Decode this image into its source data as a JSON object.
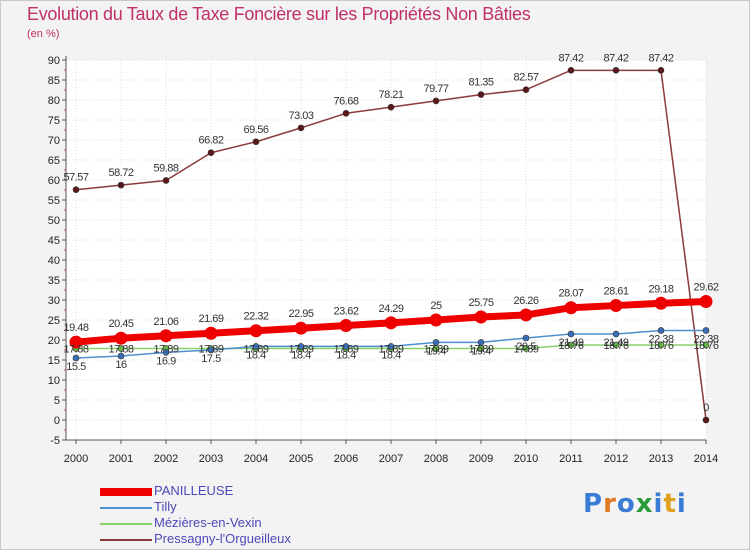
{
  "title": "Evolution du Taux de Taxe Foncière sur les Propriétés Non Bâties",
  "unit": "(en %)",
  "logo": {
    "text": "Proxiti"
  },
  "colors": {
    "background": "#f3f3f3",
    "title": "#c0306a",
    "axis": "#555555",
    "grid": "#dddddd",
    "legend_text": "#4a4ab8"
  },
  "chart_data": {
    "type": "line",
    "title": "Evolution du Taux de Taxe Foncière sur les Propriétés Non Bâties",
    "ylabel": "(en %)",
    "xlabel": "",
    "ylim": [
      -5,
      90
    ],
    "ytick_step": 5,
    "x": [
      "2000",
      "2001",
      "2002",
      "2003",
      "2004",
      "2005",
      "2006",
      "2007",
      "2008",
      "2009",
      "2010",
      "2011",
      "2012",
      "2013",
      "2014"
    ],
    "series": [
      {
        "name": "PANILLEUSE",
        "color": "#ee0000",
        "marker": "#ee0000",
        "labeled": true,
        "values": [
          19.48,
          20.45,
          21.06,
          21.69,
          22.32,
          22.95,
          23.62,
          24.29,
          25,
          25.75,
          26.26,
          28.07,
          28.61,
          29.18,
          29.62
        ],
        "labels": [
          "19.48",
          "20.45",
          "21.06",
          "21.69",
          "22.32",
          "22.95",
          "23.62",
          "24.29",
          "25",
          "25.75",
          "26.26",
          "28.07",
          "28.61",
          "29.18",
          "29.62"
        ]
      },
      {
        "name": "Tilly",
        "color": "#4d8fd0",
        "marker": "#3a6fb8",
        "labeled": true,
        "values": [
          15.5,
          16,
          16.9,
          17.5,
          18.4,
          18.4,
          18.4,
          18.4,
          19.4,
          19.4,
          20.5,
          21.49,
          21.49,
          22.38,
          22.38
        ],
        "labels": [
          "15.5",
          "16",
          "16.9",
          "17.5",
          "18.4",
          "18.4",
          "18.4",
          "18.4",
          "19.4",
          "19.4",
          "20.5",
          "21.49",
          "21.49",
          "22.38",
          "22.38"
        ]
      },
      {
        "name": "Mézières-en-Vexin",
        "color": "#88d06a",
        "marker": "#66b846",
        "labeled": true,
        "values": [
          17.88,
          17.88,
          17.89,
          17.89,
          17.89,
          17.89,
          17.89,
          17.89,
          17.89,
          17.89,
          17.89,
          18.76,
          18.76,
          18.76,
          18.76
        ],
        "labels": [
          "17.88",
          "17.88",
          "17.89",
          "17.89",
          "17.89",
          "17.89",
          "17.89",
          "17.89",
          "17.89",
          "17.89",
          "17.89",
          "18.76",
          "18.76",
          "18.76",
          "18.76"
        ]
      },
      {
        "name": "Pressagny-l'Orgueilleux",
        "color": "#8b3a3a",
        "marker": "#5a1818",
        "labeled": true,
        "values": [
          57.57,
          58.72,
          59.88,
          66.82,
          69.56,
          73.03,
          76.68,
          78.21,
          79.77,
          81.35,
          82.57,
          87.42,
          87.42,
          87.42,
          0
        ],
        "labels": [
          "57.57",
          "58.72",
          "59.88",
          "66.82",
          "69.56",
          "73.03",
          "76.68",
          "78.21",
          "79.77",
          "81.35",
          "82.57",
          "87.42",
          "87.42",
          "87.42",
          "0"
        ]
      }
    ]
  }
}
